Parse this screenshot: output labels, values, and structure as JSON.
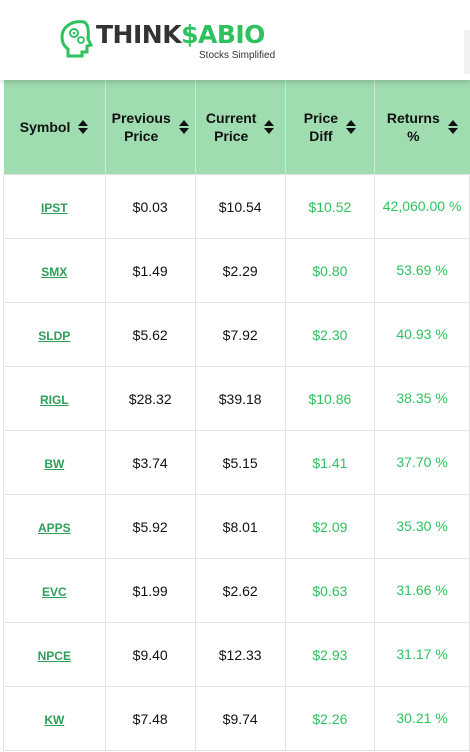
{
  "brand": {
    "name_part1": "THINK",
    "name_part2": "$ABIO",
    "tagline": "Stocks Simplified"
  },
  "colors": {
    "accent": "#2ec25f",
    "header_bg": "#9fdcb0"
  },
  "table": {
    "columns": [
      {
        "line1": "Symbol",
        "line2": ""
      },
      {
        "line1": "Previous",
        "line2": "Price"
      },
      {
        "line1": "Current",
        "line2": "Price"
      },
      {
        "line1": "Price",
        "line2": "Diff"
      },
      {
        "line1": "Returns",
        "line2": "%"
      }
    ],
    "rows": [
      {
        "symbol": "IPST",
        "previous": "$0.03",
        "current": "$10.54",
        "diff": "$10.52",
        "returns": "42,060.00 %"
      },
      {
        "symbol": "SMX",
        "previous": "$1.49",
        "current": "$2.29",
        "diff": "$0.80",
        "returns": "53.69 %"
      },
      {
        "symbol": "SLDP",
        "previous": "$5.62",
        "current": "$7.92",
        "diff": "$2.30",
        "returns": "40.93 %"
      },
      {
        "symbol": "RIGL",
        "previous": "$28.32",
        "current": "$39.18",
        "diff": "$10.86",
        "returns": "38.35 %"
      },
      {
        "symbol": "BW",
        "previous": "$3.74",
        "current": "$5.15",
        "diff": "$1.41",
        "returns": "37.70 %"
      },
      {
        "symbol": "APPS",
        "previous": "$5.92",
        "current": "$8.01",
        "diff": "$2.09",
        "returns": "35.30 %"
      },
      {
        "symbol": "EVC",
        "previous": "$1.99",
        "current": "$2.62",
        "diff": "$0.63",
        "returns": "31.66 %"
      },
      {
        "symbol": "NPCE",
        "previous": "$9.40",
        "current": "$12.33",
        "diff": "$2.93",
        "returns": "31.17 %"
      },
      {
        "symbol": "KW",
        "previous": "$7.48",
        "current": "$9.74",
        "diff": "$2.26",
        "returns": "30.21 %"
      }
    ]
  }
}
